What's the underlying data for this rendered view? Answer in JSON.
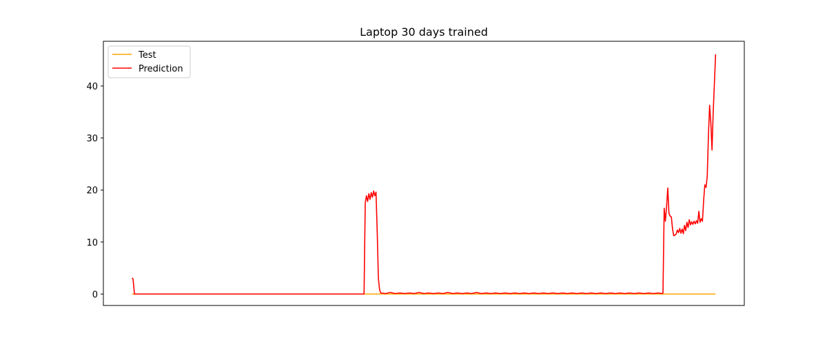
{
  "chart_data": {
    "type": "line",
    "title": "Laptop 30 days trained",
    "xlabel": "",
    "ylabel": "",
    "x_ticks_visible": false,
    "xlim": [
      -12,
      256
    ],
    "ylim": [
      -2.2,
      48.6
    ],
    "yticks": [
      0,
      10,
      20,
      30,
      40
    ],
    "grid": false,
    "legend": {
      "position": "top-left",
      "entries": [
        "Test",
        "Prediction"
      ]
    },
    "series": [
      {
        "name": "Test",
        "color": "#ffa500",
        "points": [
          [
            0,
            0
          ],
          [
            244,
            0
          ]
        ]
      },
      {
        "name": "Prediction",
        "color": "#ff0000",
        "points": [
          [
            0,
            3.1
          ],
          [
            0.4,
            2.9
          ],
          [
            1,
            0
          ],
          [
            20,
            0
          ],
          [
            40,
            0
          ],
          [
            60,
            0
          ],
          [
            80,
            0
          ],
          [
            97,
            0
          ],
          [
            97.5,
            17.5
          ],
          [
            98,
            18.9
          ],
          [
            98.5,
            17.8
          ],
          [
            99,
            19.3
          ],
          [
            99.5,
            18.2
          ],
          [
            100,
            19.5
          ],
          [
            100.5,
            18.6
          ],
          [
            101,
            19.8
          ],
          [
            101.5,
            18.9
          ],
          [
            102,
            19.6
          ],
          [
            102.5,
            12
          ],
          [
            103,
            3
          ],
          [
            103.5,
            0.8
          ],
          [
            104,
            0.2
          ],
          [
            106,
            0.1
          ],
          [
            108,
            0.3
          ],
          [
            110,
            0.1
          ],
          [
            112,
            0.2
          ],
          [
            114,
            0.1
          ],
          [
            116,
            0.2
          ],
          [
            118,
            0.1
          ],
          [
            120,
            0.3
          ],
          [
            122,
            0.1
          ],
          [
            124,
            0.2
          ],
          [
            126,
            0.1
          ],
          [
            128,
            0.2
          ],
          [
            130,
            0.1
          ],
          [
            132,
            0.3
          ],
          [
            134,
            0.1
          ],
          [
            136,
            0.2
          ],
          [
            138,
            0.1
          ],
          [
            140,
            0.2
          ],
          [
            142,
            0.1
          ],
          [
            144,
            0.3
          ],
          [
            146,
            0.1
          ],
          [
            148,
            0.2
          ],
          [
            150,
            0.1
          ],
          [
            152,
            0.2
          ],
          [
            154,
            0.1
          ],
          [
            156,
            0.2
          ],
          [
            158,
            0.1
          ],
          [
            160,
            0.2
          ],
          [
            162,
            0.1
          ],
          [
            164,
            0.2
          ],
          [
            166,
            0.1
          ],
          [
            168,
            0.2
          ],
          [
            170,
            0.1
          ],
          [
            172,
            0.2
          ],
          [
            174,
            0.1
          ],
          [
            176,
            0.2
          ],
          [
            178,
            0.1
          ],
          [
            180,
            0.2
          ],
          [
            182,
            0.1
          ],
          [
            184,
            0.2
          ],
          [
            186,
            0.1
          ],
          [
            188,
            0.2
          ],
          [
            190,
            0.1
          ],
          [
            192,
            0.2
          ],
          [
            194,
            0.1
          ],
          [
            196,
            0.2
          ],
          [
            198,
            0.1
          ],
          [
            200,
            0.2
          ],
          [
            202,
            0.1
          ],
          [
            204,
            0.2
          ],
          [
            206,
            0.1
          ],
          [
            208,
            0.2
          ],
          [
            210,
            0.1
          ],
          [
            212,
            0.2
          ],
          [
            214,
            0.1
          ],
          [
            216,
            0.2
          ],
          [
            218,
            0.1
          ],
          [
            220,
            0.2
          ],
          [
            221.5,
            0.1
          ],
          [
            222,
            0.2
          ],
          [
            222.5,
            16.5
          ],
          [
            223,
            14
          ],
          [
            223.5,
            16.8
          ],
          [
            224,
            20.4
          ],
          [
            224.5,
            15.5
          ],
          [
            225,
            15
          ],
          [
            225.5,
            14.8
          ],
          [
            226,
            12.5
          ],
          [
            226.5,
            11.2
          ],
          [
            227.5,
            11.5
          ],
          [
            228,
            12.3
          ],
          [
            228.5,
            11.8
          ],
          [
            229,
            12.6
          ],
          [
            229.5,
            11.7
          ],
          [
            230,
            12.5
          ],
          [
            230.5,
            11.6
          ],
          [
            231,
            13.2
          ],
          [
            231.5,
            12.2
          ],
          [
            232,
            13.8
          ],
          [
            232.5,
            12.8
          ],
          [
            233,
            14.3
          ],
          [
            233.5,
            13.3
          ],
          [
            234,
            13.9
          ],
          [
            234.5,
            13.4
          ],
          [
            235,
            14
          ],
          [
            235.5,
            13.5
          ],
          [
            236,
            14.1
          ],
          [
            236.5,
            13.6
          ],
          [
            237,
            15.9
          ],
          [
            237.5,
            13.8
          ],
          [
            238,
            14.5
          ],
          [
            238.5,
            14
          ],
          [
            239,
            18
          ],
          [
            239.5,
            21
          ],
          [
            240,
            20.5
          ],
          [
            240.5,
            22.6
          ],
          [
            241,
            30.5
          ],
          [
            241.5,
            36.3
          ],
          [
            242,
            33
          ],
          [
            242.5,
            27.7
          ],
          [
            243,
            35
          ],
          [
            243.5,
            40.5
          ],
          [
            244,
            46.1
          ]
        ]
      }
    ]
  }
}
